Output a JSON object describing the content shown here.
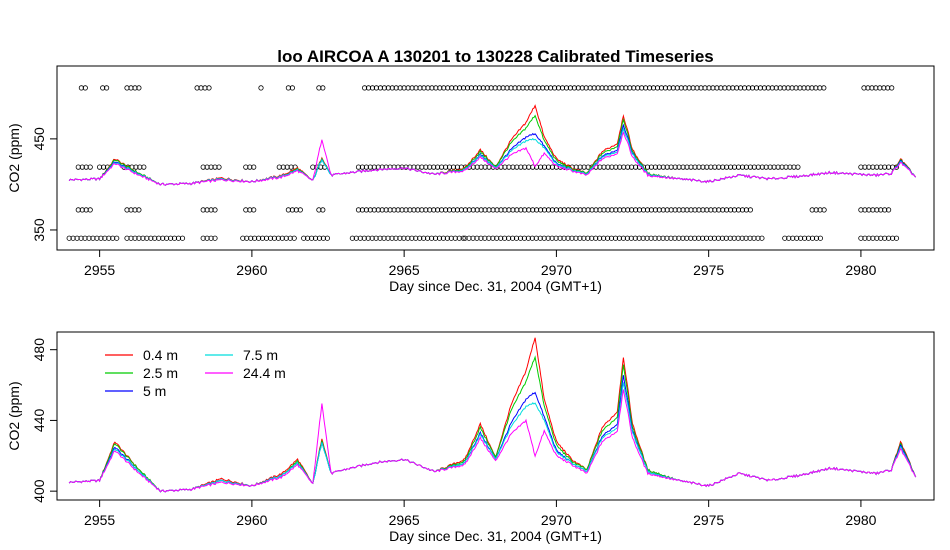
{
  "chart_data": [
    {
      "type": "line",
      "title": "loo   AIRCOA  A    130201  to  130228   Calibrated Timeseries",
      "xlabel": "Day since Dec. 31, 2004 (GMT+1)",
      "ylabel": "CO2 (ppm)",
      "xlim": [
        2953.6,
        2982.4
      ],
      "ylim": [
        328,
        530
      ],
      "x_ticks": [
        "2955",
        "2960",
        "2965",
        "2970",
        "2975",
        "2980"
      ],
      "y_ticks": [
        "350",
        "450"
      ],
      "grid": false,
      "flag_marker_levels": [
        341,
        372,
        419,
        506
      ],
      "series": [
        {
          "color": "#ff0000",
          "x": [
            2954.0,
            2955.0,
            2955.5,
            2956.3,
            2957.0,
            2958.0,
            2959.0,
            2960.0,
            2961.0,
            2961.5,
            2962.0,
            2962.3,
            2962.6,
            2963.0,
            2964.0,
            2965.0,
            2966.0,
            2967.0,
            2967.5,
            2968.0,
            2968.5,
            2969.0,
            2969.3,
            2969.6,
            2970.0,
            2970.5,
            2971.0,
            2971.5,
            2972.0,
            2972.2,
            2972.5,
            2973.0,
            2974.0,
            2975.0,
            2976.0,
            2977.0,
            2978.0,
            2979.0,
            2980.0,
            2980.5,
            2981.0,
            2981.3,
            2981.8
          ],
          "values": [
            405,
            406,
            428,
            412,
            400,
            401,
            407,
            403,
            410,
            418,
            404,
            430,
            410,
            412,
            416,
            418,
            411,
            418,
            438,
            419,
            448,
            468,
            487,
            452,
            428,
            418,
            412,
            436,
            445,
            476,
            438,
            412,
            406,
            403,
            410,
            406,
            409,
            413,
            411,
            410,
            412,
            428,
            408
          ]
        },
        {
          "color": "#00cc00",
          "x": [
            2954.0,
            2955.0,
            2955.5,
            2956.3,
            2957.0,
            2958.0,
            2959.0,
            2960.0,
            2961.0,
            2961.5,
            2962.0,
            2962.3,
            2962.6,
            2963.0,
            2964.0,
            2965.0,
            2966.0,
            2967.0,
            2967.5,
            2968.0,
            2968.5,
            2969.0,
            2969.3,
            2969.6,
            2970.0,
            2970.5,
            2971.0,
            2971.5,
            2972.0,
            2972.2,
            2972.5,
            2973.0,
            2974.0,
            2975.0,
            2976.0,
            2977.0,
            2978.0,
            2979.0,
            2980.0,
            2980.5,
            2981.0,
            2981.3,
            2981.8
          ],
          "values": [
            405,
            406,
            427,
            412,
            400,
            401,
            406,
            403,
            409,
            417,
            404,
            429,
            410,
            412,
            416,
            418,
            411,
            417,
            436,
            419,
            445,
            462,
            476,
            448,
            426,
            417,
            412,
            434,
            442,
            472,
            436,
            412,
            406,
            403,
            410,
            406,
            409,
            413,
            411,
            410,
            412,
            427,
            408
          ]
        },
        {
          "color": "#0000ff",
          "x": [
            2954.0,
            2955.0,
            2955.5,
            2956.3,
            2957.0,
            2958.0,
            2959.0,
            2960.0,
            2961.0,
            2961.5,
            2962.0,
            2962.3,
            2962.6,
            2963.0,
            2964.0,
            2965.0,
            2966.0,
            2967.0,
            2967.5,
            2968.0,
            2968.5,
            2969.0,
            2969.3,
            2969.6,
            2970.0,
            2970.5,
            2971.0,
            2971.5,
            2972.0,
            2972.2,
            2972.5,
            2973.0,
            2974.0,
            2975.0,
            2976.0,
            2977.0,
            2978.0,
            2979.0,
            2980.0,
            2980.5,
            2981.0,
            2981.3,
            2981.8
          ],
          "values": [
            405,
            406,
            425,
            411,
            400,
            401,
            406,
            403,
            409,
            416,
            404,
            428,
            410,
            412,
            416,
            418,
            411,
            416,
            433,
            418,
            438,
            452,
            456,
            442,
            423,
            416,
            411,
            431,
            438,
            466,
            434,
            411,
            406,
            403,
            410,
            406,
            409,
            413,
            411,
            410,
            412,
            426,
            408
          ]
        },
        {
          "color": "#00dddd",
          "x": [
            2954.0,
            2955.0,
            2955.5,
            2956.3,
            2957.0,
            2958.0,
            2959.0,
            2960.0,
            2961.0,
            2961.5,
            2962.0,
            2962.3,
            2962.6,
            2963.0,
            2964.0,
            2965.0,
            2966.0,
            2967.0,
            2967.5,
            2968.0,
            2968.5,
            2969.0,
            2969.3,
            2969.6,
            2970.0,
            2970.5,
            2971.0,
            2971.5,
            2972.0,
            2972.2,
            2972.5,
            2973.0,
            2974.0,
            2975.0,
            2976.0,
            2977.0,
            2978.0,
            2979.0,
            2980.0,
            2980.5,
            2981.0,
            2981.3,
            2981.8
          ],
          "values": [
            405,
            406,
            424,
            411,
            400,
            401,
            406,
            403,
            409,
            416,
            404,
            428,
            410,
            412,
            416,
            418,
            411,
            416,
            432,
            418,
            436,
            448,
            450,
            440,
            422,
            416,
            411,
            430,
            436,
            462,
            433,
            411,
            406,
            403,
            410,
            406,
            409,
            413,
            411,
            410,
            412,
            425,
            408
          ]
        },
        {
          "color": "#ff00ff",
          "x": [
            2954.0,
            2955.0,
            2955.5,
            2956.3,
            2957.0,
            2958.0,
            2959.0,
            2960.0,
            2961.0,
            2961.5,
            2962.0,
            2962.3,
            2962.6,
            2963.0,
            2964.0,
            2965.0,
            2966.0,
            2967.0,
            2967.5,
            2968.0,
            2968.5,
            2969.0,
            2969.3,
            2969.6,
            2970.0,
            2970.5,
            2971.0,
            2971.5,
            2972.0,
            2972.2,
            2972.5,
            2973.0,
            2974.0,
            2975.0,
            2976.0,
            2977.0,
            2978.0,
            2979.0,
            2980.0,
            2980.5,
            2981.0,
            2981.3,
            2981.8
          ],
          "values": [
            405,
            406,
            423,
            410,
            400,
            401,
            405,
            403,
            408,
            415,
            404,
            450,
            410,
            412,
            416,
            418,
            411,
            415,
            430,
            417,
            432,
            440,
            420,
            434,
            420,
            415,
            410,
            428,
            434,
            458,
            430,
            410,
            406,
            403,
            410,
            406,
            409,
            413,
            411,
            410,
            412,
            424,
            408
          ]
        }
      ]
    },
    {
      "type": "line",
      "title": "",
      "xlabel": "Day since Dec. 31, 2004 (GMT+1)",
      "ylabel": "CO2 (ppm)",
      "xlim": [
        2953.6,
        2982.4
      ],
      "ylim": [
        395,
        490
      ],
      "x_ticks": [
        "2955",
        "2960",
        "2965",
        "2970",
        "2975",
        "2980"
      ],
      "y_ticks": [
        "400",
        "440",
        "480"
      ],
      "grid": false,
      "legend_position": "top-left",
      "series": [
        {
          "name": "0.4 m",
          "color": "#ff0000",
          "x": [
            2954.0,
            2955.0,
            2955.5,
            2956.3,
            2957.0,
            2958.0,
            2959.0,
            2960.0,
            2961.0,
            2961.5,
            2962.0,
            2962.3,
            2962.6,
            2963.0,
            2964.0,
            2965.0,
            2966.0,
            2967.0,
            2967.5,
            2968.0,
            2968.5,
            2969.0,
            2969.3,
            2969.6,
            2970.0,
            2970.5,
            2971.0,
            2971.5,
            2972.0,
            2972.2,
            2972.5,
            2973.0,
            2974.0,
            2975.0,
            2976.0,
            2977.0,
            2978.0,
            2979.0,
            2980.0,
            2980.5,
            2981.0,
            2981.3,
            2981.8
          ],
          "values": [
            405,
            406,
            428,
            412,
            400,
            401,
            407,
            403,
            410,
            418,
            404,
            430,
            410,
            412,
            416,
            418,
            411,
            418,
            438,
            419,
            448,
            468,
            487,
            452,
            428,
            418,
            412,
            436,
            445,
            476,
            438,
            412,
            406,
            403,
            410,
            406,
            409,
            413,
            411,
            410,
            412,
            428,
            408
          ]
        },
        {
          "name": "2.5 m",
          "color": "#00cc00",
          "x": [
            2954.0,
            2955.0,
            2955.5,
            2956.3,
            2957.0,
            2958.0,
            2959.0,
            2960.0,
            2961.0,
            2961.5,
            2962.0,
            2962.3,
            2962.6,
            2963.0,
            2964.0,
            2965.0,
            2966.0,
            2967.0,
            2967.5,
            2968.0,
            2968.5,
            2969.0,
            2969.3,
            2969.6,
            2970.0,
            2970.5,
            2971.0,
            2971.5,
            2972.0,
            2972.2,
            2972.5,
            2973.0,
            2974.0,
            2975.0,
            2976.0,
            2977.0,
            2978.0,
            2979.0,
            2980.0,
            2980.5,
            2981.0,
            2981.3,
            2981.8
          ],
          "values": [
            405,
            406,
            427,
            412,
            400,
            401,
            406,
            403,
            409,
            417,
            404,
            429,
            410,
            412,
            416,
            418,
            411,
            417,
            436,
            419,
            445,
            462,
            476,
            448,
            426,
            417,
            412,
            434,
            442,
            472,
            436,
            412,
            406,
            403,
            410,
            406,
            409,
            413,
            411,
            410,
            412,
            427,
            408
          ]
        },
        {
          "name": "5 m",
          "color": "#0000ff",
          "x": [
            2954.0,
            2955.0,
            2955.5,
            2956.3,
            2957.0,
            2958.0,
            2959.0,
            2960.0,
            2961.0,
            2961.5,
            2962.0,
            2962.3,
            2962.6,
            2963.0,
            2964.0,
            2965.0,
            2966.0,
            2967.0,
            2967.5,
            2968.0,
            2968.5,
            2969.0,
            2969.3,
            2969.6,
            2970.0,
            2970.5,
            2971.0,
            2971.5,
            2972.0,
            2972.2,
            2972.5,
            2973.0,
            2974.0,
            2975.0,
            2976.0,
            2977.0,
            2978.0,
            2979.0,
            2980.0,
            2980.5,
            2981.0,
            2981.3,
            2981.8
          ],
          "values": [
            405,
            406,
            425,
            411,
            400,
            401,
            406,
            403,
            409,
            416,
            404,
            428,
            410,
            412,
            416,
            418,
            411,
            416,
            433,
            418,
            438,
            452,
            456,
            442,
            423,
            416,
            411,
            431,
            438,
            466,
            434,
            411,
            406,
            403,
            410,
            406,
            409,
            413,
            411,
            410,
            412,
            426,
            408
          ]
        },
        {
          "name": "7.5 m",
          "color": "#00dddd",
          "x": [
            2954.0,
            2955.0,
            2955.5,
            2956.3,
            2957.0,
            2958.0,
            2959.0,
            2960.0,
            2961.0,
            2961.5,
            2962.0,
            2962.3,
            2962.6,
            2963.0,
            2964.0,
            2965.0,
            2966.0,
            2967.0,
            2967.5,
            2968.0,
            2968.5,
            2969.0,
            2969.3,
            2969.6,
            2970.0,
            2970.5,
            2971.0,
            2971.5,
            2972.0,
            2972.2,
            2972.5,
            2973.0,
            2974.0,
            2975.0,
            2976.0,
            2977.0,
            2978.0,
            2979.0,
            2980.0,
            2980.5,
            2981.0,
            2981.3,
            2981.8
          ],
          "values": [
            405,
            406,
            424,
            411,
            400,
            401,
            406,
            403,
            409,
            416,
            404,
            428,
            410,
            412,
            416,
            418,
            411,
            416,
            432,
            418,
            436,
            448,
            450,
            440,
            422,
            416,
            411,
            430,
            436,
            462,
            433,
            411,
            406,
            403,
            410,
            406,
            409,
            413,
            411,
            410,
            412,
            425,
            408
          ]
        },
        {
          "name": "24.4 m",
          "color": "#ff00ff",
          "x": [
            2954.0,
            2955.0,
            2955.5,
            2956.3,
            2957.0,
            2958.0,
            2959.0,
            2960.0,
            2961.0,
            2961.5,
            2962.0,
            2962.3,
            2962.6,
            2963.0,
            2964.0,
            2965.0,
            2966.0,
            2967.0,
            2967.5,
            2968.0,
            2968.5,
            2969.0,
            2969.3,
            2969.6,
            2970.0,
            2970.5,
            2971.0,
            2971.5,
            2972.0,
            2972.2,
            2972.5,
            2973.0,
            2974.0,
            2975.0,
            2976.0,
            2977.0,
            2978.0,
            2979.0,
            2980.0,
            2980.5,
            2981.0,
            2981.3,
            2981.8
          ],
          "values": [
            405,
            406,
            423,
            410,
            400,
            401,
            405,
            403,
            408,
            415,
            404,
            450,
            410,
            412,
            416,
            418,
            411,
            415,
            430,
            417,
            432,
            440,
            420,
            434,
            420,
            415,
            410,
            428,
            434,
            458,
            430,
            410,
            406,
            403,
            410,
            406,
            409,
            413,
            411,
            410,
            412,
            424,
            408
          ]
        }
      ]
    }
  ]
}
